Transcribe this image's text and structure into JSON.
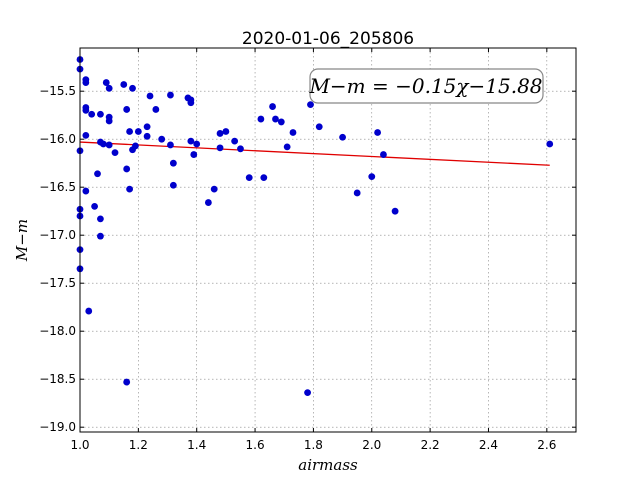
{
  "chart_data": {
    "type": "scatter",
    "title": "2020-01-06_205806",
    "xlabel": "airmass",
    "ylabel": "M−m",
    "xlim": [
      1.0,
      2.7
    ],
    "ylim": [
      -19.05,
      -15.05
    ],
    "xticks": [
      "1.0",
      "1.2",
      "1.4",
      "1.6",
      "1.8",
      "2.0",
      "2.2",
      "2.4",
      "2.6"
    ],
    "xtick_values": [
      1.0,
      1.2,
      1.4,
      1.6,
      1.8,
      2.0,
      2.2,
      2.4,
      2.6
    ],
    "yticks": [
      "−15.5",
      "−16.0",
      "−16.5",
      "−17.0",
      "−17.5",
      "−18.0",
      "−18.5",
      "−19.0"
    ],
    "ytick_values": [
      -15.5,
      -16.0,
      -16.5,
      -17.0,
      -17.5,
      -18.0,
      -18.5,
      -19.0
    ],
    "grid": true,
    "annotation": "M−m = −0.15χ−15.88",
    "fit": {
      "slope": -0.15,
      "intercept": -15.88,
      "x_range": [
        1.0,
        2.61
      ],
      "color": "#e00000"
    },
    "point_color": "#0000cc",
    "points": [
      [
        1.0,
        -15.17
      ],
      [
        1.0,
        -15.27
      ],
      [
        1.0,
        -16.12
      ],
      [
        1.0,
        -16.73
      ],
      [
        1.0,
        -16.8
      ],
      [
        1.0,
        -17.15
      ],
      [
        1.0,
        -17.35
      ],
      [
        1.02,
        -15.38
      ],
      [
        1.02,
        -15.41
      ],
      [
        1.02,
        -15.67
      ],
      [
        1.02,
        -15.7
      ],
      [
        1.02,
        -15.96
      ],
      [
        1.02,
        -16.54
      ],
      [
        1.03,
        -17.79
      ],
      [
        1.04,
        -15.74
      ],
      [
        1.05,
        -16.7
      ],
      [
        1.06,
        -16.36
      ],
      [
        1.07,
        -16.03
      ],
      [
        1.07,
        -16.83
      ],
      [
        1.07,
        -17.01
      ],
      [
        1.07,
        -15.74
      ],
      [
        1.08,
        -16.05
      ],
      [
        1.09,
        -15.41
      ],
      [
        1.1,
        -15.47
      ],
      [
        1.1,
        -15.77
      ],
      [
        1.1,
        -16.06
      ],
      [
        1.1,
        -15.81
      ],
      [
        1.12,
        -16.14
      ],
      [
        1.15,
        -15.43
      ],
      [
        1.16,
        -15.69
      ],
      [
        1.16,
        -16.31
      ],
      [
        1.16,
        -18.53
      ],
      [
        1.17,
        -15.92
      ],
      [
        1.17,
        -16.52
      ],
      [
        1.18,
        -15.47
      ],
      [
        1.18,
        -16.11
      ],
      [
        1.19,
        -16.07
      ],
      [
        1.2,
        -15.92
      ],
      [
        1.23,
        -15.87
      ],
      [
        1.23,
        -15.97
      ],
      [
        1.24,
        -15.55
      ],
      [
        1.26,
        -15.69
      ],
      [
        1.28,
        -16.0
      ],
      [
        1.31,
        -15.54
      ],
      [
        1.31,
        -16.06
      ],
      [
        1.32,
        -16.25
      ],
      [
        1.32,
        -16.48
      ],
      [
        1.37,
        -15.57
      ],
      [
        1.38,
        -15.59
      ],
      [
        1.38,
        -15.62
      ],
      [
        1.38,
        -16.02
      ],
      [
        1.39,
        -16.16
      ],
      [
        1.4,
        -16.05
      ],
      [
        1.44,
        -16.66
      ],
      [
        1.46,
        -16.52
      ],
      [
        1.48,
        -15.94
      ],
      [
        1.48,
        -16.09
      ],
      [
        1.5,
        -15.92
      ],
      [
        1.53,
        -16.02
      ],
      [
        1.55,
        -16.1
      ],
      [
        1.58,
        -16.4
      ],
      [
        1.62,
        -15.79
      ],
      [
        1.63,
        -16.4
      ],
      [
        1.66,
        -15.66
      ],
      [
        1.67,
        -15.79
      ],
      [
        1.69,
        -15.82
      ],
      [
        1.71,
        -16.08
      ],
      [
        1.73,
        -15.93
      ],
      [
        1.78,
        -18.64
      ],
      [
        1.79,
        -15.64
      ],
      [
        1.82,
        -15.87
      ],
      [
        1.9,
        -15.98
      ],
      [
        1.95,
        -16.56
      ],
      [
        2.0,
        -16.39
      ],
      [
        2.02,
        -15.93
      ],
      [
        2.04,
        -16.16
      ],
      [
        2.08,
        -16.75
      ],
      [
        2.61,
        -16.05
      ]
    ]
  }
}
